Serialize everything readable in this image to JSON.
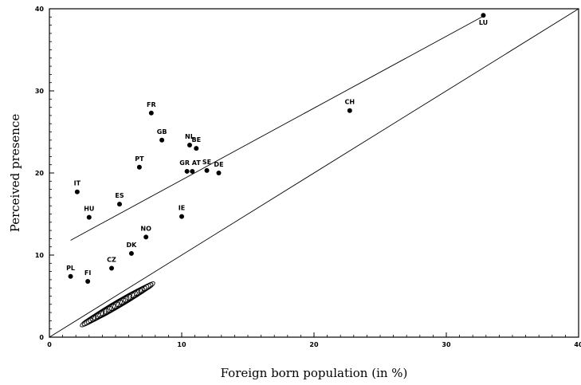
{
  "chart_data": {
    "type": "scatter",
    "xlabel": "Foreign born population (in %)",
    "ylabel": "Perceived presence",
    "xlim": [
      0,
      40
    ],
    "ylim": [
      0,
      40
    ],
    "xticks": [
      0,
      10,
      20,
      30,
      40
    ],
    "yticks": [
      0,
      10,
      20,
      30,
      40
    ],
    "grid": false,
    "points": [
      {
        "label": "LU",
        "x": 32.8,
        "y": 39.2
      },
      {
        "label": "CH",
        "x": 22.7,
        "y": 27.6
      },
      {
        "label": "FR",
        "x": 7.7,
        "y": 27.3
      },
      {
        "label": "GB",
        "x": 8.5,
        "y": 24.0
      },
      {
        "label": "NL",
        "x": 10.6,
        "y": 23.4
      },
      {
        "label": "BE",
        "x": 11.1,
        "y": 23.0
      },
      {
        "label": "PT",
        "x": 6.8,
        "y": 20.7
      },
      {
        "label": "GR",
        "x": 10.4,
        "y": 20.2
      },
      {
        "label": "AT",
        "x": 10.8,
        "y": 20.2
      },
      {
        "label": "SE",
        "x": 11.9,
        "y": 20.3
      },
      {
        "label": "DE",
        "x": 12.8,
        "y": 20.0
      },
      {
        "label": "IT",
        "x": 2.1,
        "y": 17.7
      },
      {
        "label": "ES",
        "x": 5.3,
        "y": 16.2
      },
      {
        "label": "HU",
        "x": 3.0,
        "y": 14.6
      },
      {
        "label": "IE",
        "x": 10.0,
        "y": 14.7
      },
      {
        "label": "NO",
        "x": 7.3,
        "y": 12.2
      },
      {
        "label": "DK",
        "x": 6.2,
        "y": 10.2
      },
      {
        "label": "CZ",
        "x": 4.7,
        "y": 8.4
      },
      {
        "label": "PL",
        "x": 1.6,
        "y": 7.4
      },
      {
        "label": "FI",
        "x": 2.9,
        "y": 6.8
      }
    ],
    "lines": [
      {
        "x": [
          1.6,
          32.8
        ],
        "y": [
          11.8,
          39.1
        ]
      },
      {
        "x": [
          0,
          40
        ],
        "y": [
          0,
          40
        ]
      }
    ],
    "ellipse_cluster": {
      "x_range": [
        2.5,
        7.8
      ],
      "y_range": [
        1.0,
        7.0
      ]
    }
  }
}
